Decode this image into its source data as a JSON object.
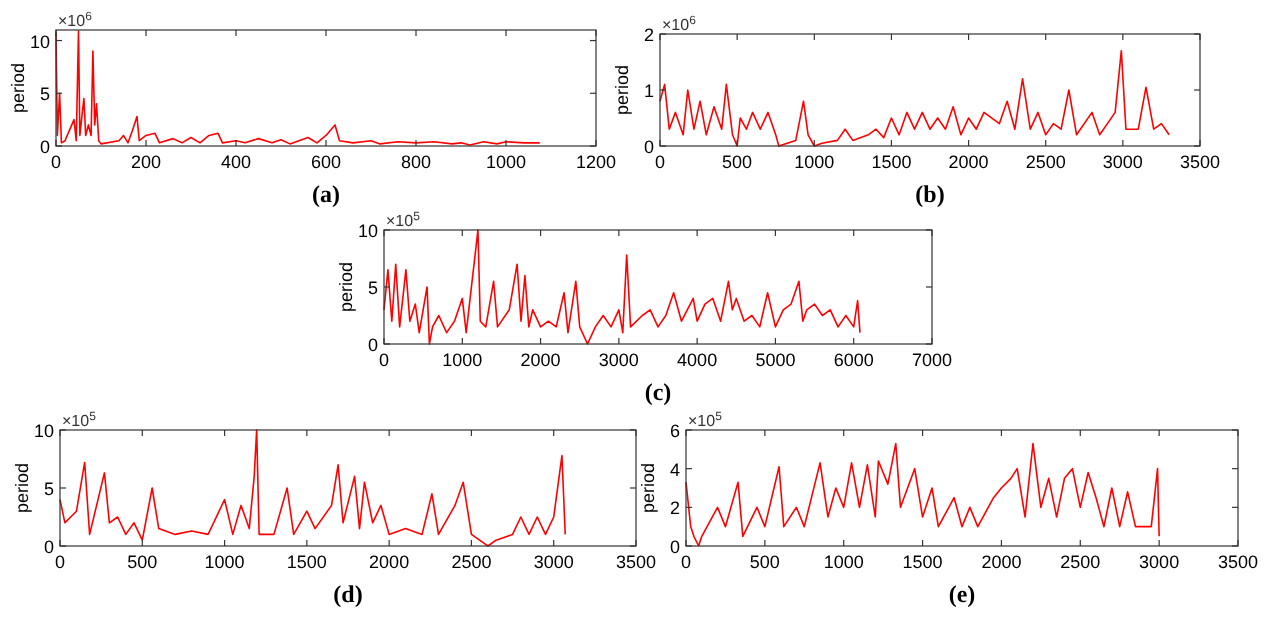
{
  "chart_data": [
    {
      "type": "line",
      "title": "(a)",
      "ylabel": "period",
      "annotations": [
        "×10$^{6}$"
      ],
      "xlim": [
        0,
        1200
      ],
      "xticks": [
        0,
        200,
        400,
        600,
        800,
        1000,
        1200
      ],
      "ylim": [
        0,
        11
      ],
      "yticks": [
        0,
        5,
        10
      ],
      "grid": false,
      "marker": "none",
      "line_style": "solid",
      "series": [
        {
          "color": "#ff0000",
          "x": [
            0,
            3,
            8,
            12,
            20,
            30,
            40,
            45,
            50,
            53,
            58,
            62,
            66,
            72,
            78,
            82,
            86,
            90,
            95,
            100,
            140,
            150,
            160,
            170,
            180,
            185,
            200,
            220,
            230,
            260,
            280,
            300,
            320,
            340,
            360,
            370,
            400,
            420,
            450,
            480,
            500,
            520,
            560,
            580,
            600,
            620,
            630,
            660,
            700,
            720,
            760,
            800,
            840,
            880,
            900,
            920,
            950,
            980,
            1000,
            1040,
            1075
          ],
          "values": [
            10.8,
            1,
            5,
            0.3,
            0.5,
            1.5,
            2.5,
            0.5,
            10.9,
            1,
            3,
            4.5,
            1,
            2,
            1,
            9,
            2,
            4,
            0.5,
            0.2,
            0.5,
            1,
            0.3,
            1.5,
            2.8,
            0.5,
            1,
            1.2,
            0.3,
            0.7,
            0.3,
            0.8,
            0.3,
            1,
            1.2,
            0.3,
            0.5,
            0.3,
            0.7,
            0.3,
            0.6,
            0.2,
            0.8,
            0.3,
            1,
            2,
            0.5,
            0.3,
            0.5,
            0.2,
            0.4,
            0.3,
            0.4,
            0.2,
            0.3,
            0.1,
            0.4,
            0.2,
            0.4,
            0.3,
            0.3
          ]
        }
      ]
    },
    {
      "type": "line",
      "title": "(b)",
      "ylabel": "period",
      "annotations": [
        "×10$^{6}$"
      ],
      "xlim": [
        0,
        3500
      ],
      "xticks": [
        0,
        500,
        1000,
        1500,
        2000,
        2500,
        3000,
        3500
      ],
      "ylim": [
        0,
        2
      ],
      "yticks": [
        0,
        1,
        2
      ],
      "grid": false,
      "marker": "none",
      "line_style": "solid",
      "series": [
        {
          "color": "#ff0000",
          "x": [
            0,
            30,
            60,
            100,
            150,
            180,
            220,
            260,
            300,
            350,
            400,
            430,
            470,
            500,
            520,
            560,
            600,
            650,
            700,
            750,
            770,
            880,
            930,
            960,
            1000,
            1050,
            1150,
            1200,
            1250,
            1350,
            1400,
            1450,
            1500,
            1550,
            1600,
            1650,
            1700,
            1750,
            1800,
            1850,
            1900,
            1950,
            2000,
            2050,
            2100,
            2200,
            2250,
            2300,
            2350,
            2400,
            2450,
            2500,
            2550,
            2600,
            2650,
            2700,
            2800,
            2850,
            2900,
            2950,
            2990,
            3020,
            3100,
            3150,
            3200,
            3250,
            3300
          ],
          "values": [
            0.8,
            1.1,
            0.3,
            0.6,
            0.2,
            1,
            0.3,
            0.8,
            0.2,
            0.7,
            0.3,
            1.1,
            0.2,
            0,
            0.5,
            0.3,
            0.6,
            0.3,
            0.6,
            0.2,
            0,
            0.1,
            0.8,
            0.2,
            0,
            0.05,
            0.1,
            0.3,
            0.1,
            0.2,
            0.3,
            0.15,
            0.5,
            0.2,
            0.6,
            0.3,
            0.6,
            0.3,
            0.5,
            0.3,
            0.7,
            0.2,
            0.5,
            0.3,
            0.6,
            0.4,
            0.8,
            0.3,
            1.2,
            0.3,
            0.6,
            0.2,
            0.4,
            0.3,
            1,
            0.2,
            0.6,
            0.2,
            0.4,
            0.6,
            1.7,
            0.3,
            0.3,
            1.05,
            0.3,
            0.4,
            0.2
          ]
        }
      ]
    },
    {
      "type": "line",
      "title": "(c)",
      "ylabel": "period",
      "annotations": [
        "×10$^{5}$"
      ],
      "xlim": [
        0,
        7000
      ],
      "xticks": [
        0,
        1000,
        2000,
        3000,
        4000,
        5000,
        6000,
        7000
      ],
      "ylim": [
        0,
        10
      ],
      "yticks": [
        0,
        5,
        10
      ],
      "grid": false,
      "marker": "none",
      "line_style": "solid",
      "series": [
        {
          "color": "#ff0000",
          "x": [
            0,
            50,
            100,
            150,
            200,
            280,
            330,
            400,
            450,
            550,
            580,
            620,
            700,
            800,
            900,
            1000,
            1050,
            1200,
            1230,
            1300,
            1400,
            1450,
            1600,
            1700,
            1750,
            1800,
            1850,
            1900,
            2000,
            2100,
            2200,
            2300,
            2350,
            2450,
            2500,
            2600,
            2700,
            2800,
            2900,
            3000,
            3050,
            3100,
            3150,
            3300,
            3400,
            3500,
            3600,
            3700,
            3800,
            3950,
            4000,
            4100,
            4200,
            4300,
            4400,
            4450,
            4500,
            4600,
            4700,
            4800,
            4900,
            5000,
            5100,
            5200,
            5300,
            5350,
            5400,
            5500,
            5600,
            5700,
            5800,
            5900,
            6000,
            6050,
            6080
          ],
          "values": [
            3,
            6.5,
            2,
            7,
            1.5,
            6.5,
            2,
            3.5,
            1,
            5,
            0,
            1.5,
            2.5,
            1,
            2,
            4,
            1,
            10,
            2,
            1.5,
            5.5,
            1.5,
            3,
            7,
            2,
            6,
            1.5,
            3,
            1.5,
            2,
            1.5,
            4.5,
            1,
            5.5,
            1.5,
            0,
            1.5,
            2.5,
            1.5,
            3,
            1,
            7.8,
            1.5,
            2.5,
            3,
            1.5,
            2.5,
            4.5,
            2,
            4,
            2,
            3.5,
            4,
            2,
            5.5,
            3,
            4,
            2,
            2.5,
            1.5,
            4.5,
            1.5,
            3,
            3.5,
            5.5,
            2,
            3,
            3.5,
            2.5,
            3,
            1.5,
            2.5,
            1.5,
            3.8,
            1
          ]
        }
      ]
    },
    {
      "type": "line",
      "title": "(d)",
      "ylabel": "period",
      "annotations": [
        "×10$^{5}$"
      ],
      "xlim": [
        0,
        3500
      ],
      "xticks": [
        0,
        500,
        1000,
        1500,
        2000,
        2500,
        3000,
        3500
      ],
      "ylim": [
        0,
        10
      ],
      "yticks": [
        0,
        5,
        10
      ],
      "grid": false,
      "marker": "none",
      "line_style": "solid",
      "series": [
        {
          "color": "#ff0000",
          "x": [
            0,
            30,
            100,
            150,
            180,
            270,
            300,
            350,
            400,
            450,
            500,
            560,
            600,
            700,
            800,
            900,
            1000,
            1050,
            1100,
            1150,
            1180,
            1195,
            1210,
            1300,
            1380,
            1420,
            1500,
            1550,
            1650,
            1690,
            1720,
            1790,
            1820,
            1850,
            1900,
            1950,
            2000,
            2100,
            2200,
            2260,
            2300,
            2400,
            2450,
            2500,
            2580,
            2600,
            2650,
            2750,
            2800,
            2850,
            2900,
            2950,
            3000,
            3050,
            3070
          ],
          "values": [
            4,
            2,
            3,
            7.2,
            1,
            6.3,
            2,
            2.5,
            1,
            2,
            0.5,
            5,
            1.5,
            1,
            1.3,
            1,
            4,
            1,
            3.5,
            1.5,
            6,
            10,
            1,
            1,
            5,
            1,
            3,
            1.5,
            3.5,
            7,
            2,
            6,
            1.5,
            5.5,
            2,
            3.5,
            1,
            1.5,
            1,
            4.5,
            1,
            3.5,
            5.5,
            1,
            0.2,
            0,
            0.5,
            1,
            2.5,
            1,
            2.5,
            1,
            2.5,
            7.8,
            1
          ]
        }
      ]
    },
    {
      "type": "line",
      "title": "(e)",
      "ylabel": "period",
      "annotations": [
        "×10$^{5}$"
      ],
      "xlim": [
        0,
        3500
      ],
      "xticks": [
        0,
        500,
        1000,
        1500,
        2000,
        2500,
        3000,
        3500
      ],
      "ylim": [
        0,
        6
      ],
      "yticks": [
        0,
        2,
        4,
        6
      ],
      "grid": false,
      "marker": "none",
      "line_style": "solid",
      "series": [
        {
          "color": "#ff0000",
          "x": [
            0,
            30,
            50,
            80,
            100,
            200,
            250,
            330,
            360,
            450,
            500,
            590,
            620,
            700,
            750,
            850,
            900,
            950,
            1000,
            1050,
            1100,
            1150,
            1200,
            1220,
            1280,
            1330,
            1360,
            1450,
            1500,
            1560,
            1600,
            1700,
            1750,
            1800,
            1850,
            1950,
            2000,
            2060,
            2100,
            2150,
            2200,
            2250,
            2300,
            2350,
            2400,
            2450,
            2500,
            2550,
            2600,
            2650,
            2700,
            2750,
            2800,
            2850,
            2900,
            2950,
            2990,
            3000
          ],
          "values": [
            3.3,
            1,
            0.5,
            0,
            0.5,
            2,
            1,
            3.3,
            0.5,
            2,
            1,
            4.1,
            1,
            2,
            1,
            4.3,
            1.5,
            3,
            2,
            4.3,
            2,
            4.2,
            1.5,
            4.4,
            3.2,
            5.3,
            2,
            4,
            1.5,
            3,
            1,
            2.5,
            1,
            2,
            1,
            2.5,
            3,
            3.5,
            4,
            1.5,
            5.3,
            2,
            3.5,
            1.5,
            3.5,
            4,
            2,
            3.8,
            2.5,
            1,
            3,
            1,
            2.8,
            1,
            1,
            1,
            4,
            0.5
          ]
        }
      ]
    }
  ]
}
